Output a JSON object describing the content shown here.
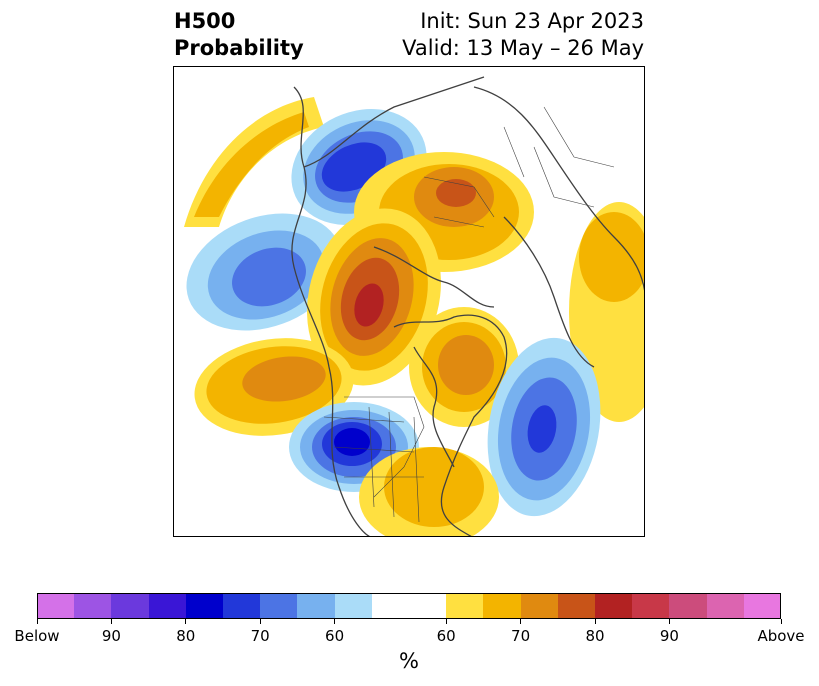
{
  "title": {
    "left_line1": "H500",
    "left_line2": "Probability",
    "right_line1": "Init: Sun 23 Apr 2023",
    "right_line2": "Valid: 13 May – 26 May"
  },
  "colorbar": {
    "unit": "%",
    "below_colors": [
      "#d471e8",
      "#9d54e4",
      "#6b39dd",
      "#3a16d6",
      "#0000cc",
      "#2238d9",
      "#4c74e4",
      "#77b1ef",
      "#aadcf8"
    ],
    "neutral_color": "#ffffff",
    "above_colors": [
      "#ffe040",
      "#f3b400",
      "#e08a10",
      "#c85418",
      "#b22222",
      "#c83848",
      "#cc4c7c",
      "#dc64b0",
      "#e877e0"
    ],
    "tick_labels": [
      "Below",
      "90",
      "80",
      "70",
      "60",
      "60",
      "70",
      "80",
      "90",
      "Above"
    ]
  },
  "map": {
    "description_colors": {
      "coast": "#404040"
    }
  }
}
